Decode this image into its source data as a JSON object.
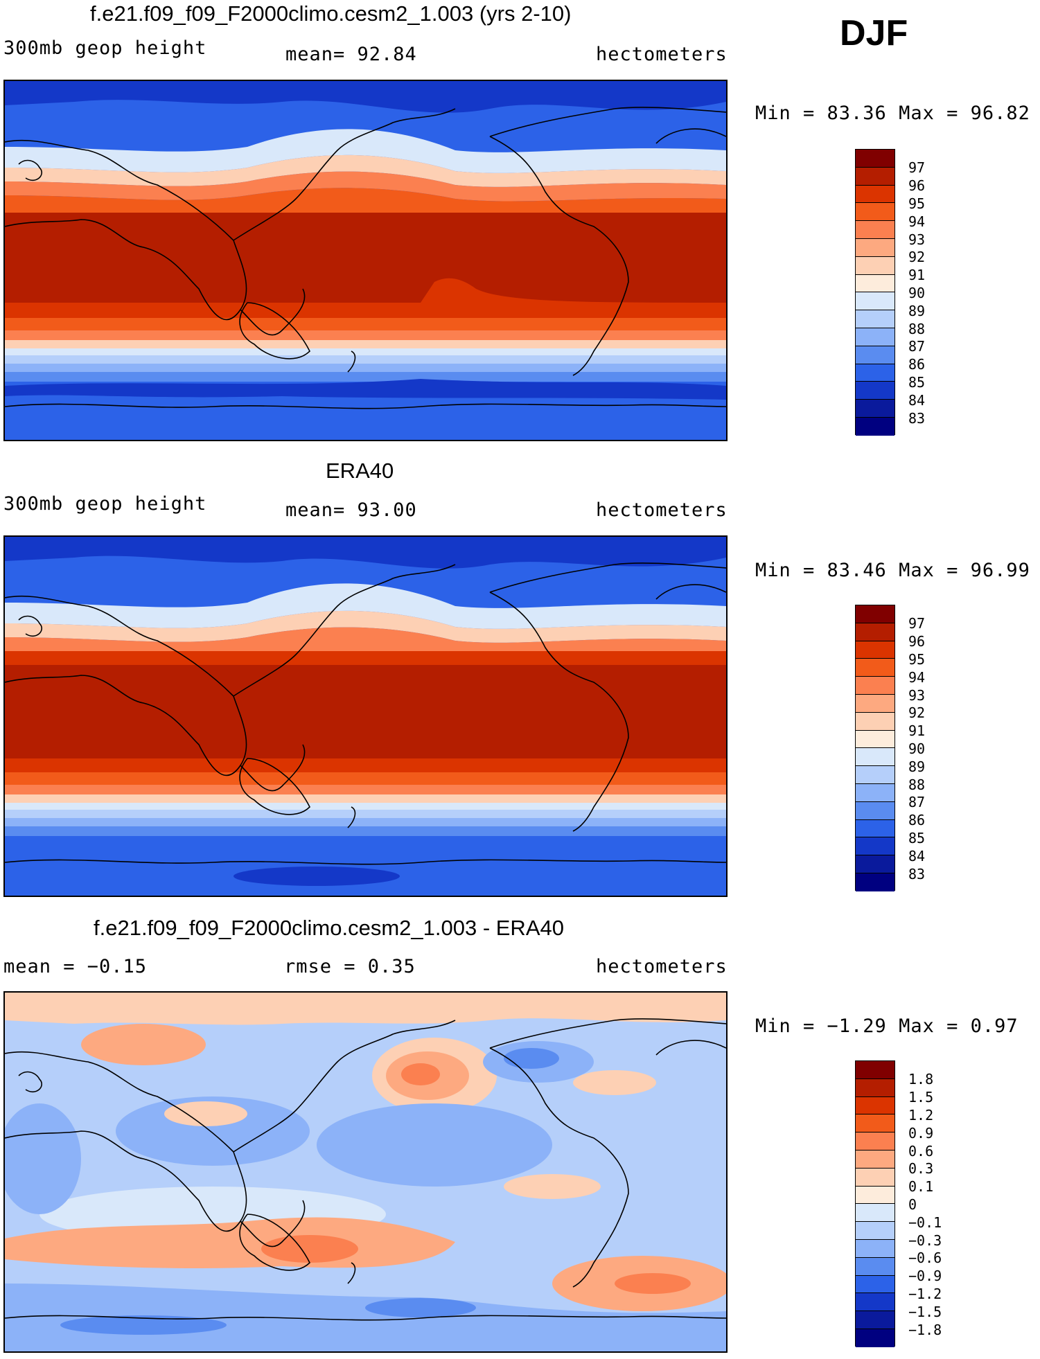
{
  "season": "DJF",
  "panels": [
    {
      "title": "f.e21.f09_f09_F2000climo.cesm2_1.003 (yrs 2-10)",
      "left_text": "300mb geop height",
      "center_text": "mean=  92.84",
      "units": "hectometers",
      "minmax": "Min =  83.36 Max =  96.82",
      "colorbar_levels": [
        "97",
        "96",
        "95",
        "94",
        "93",
        "92",
        "91",
        "90",
        "89",
        "88",
        "87",
        "86",
        "85",
        "84",
        "83"
      ]
    },
    {
      "title": "ERA40",
      "left_text": "300mb geop height",
      "center_text": "mean=  93.00",
      "units": "hectometers",
      "minmax": "Min =  83.46 Max =  96.99",
      "colorbar_levels": [
        "97",
        "96",
        "95",
        "94",
        "93",
        "92",
        "91",
        "90",
        "89",
        "88",
        "87",
        "86",
        "85",
        "84",
        "83"
      ]
    },
    {
      "title": "f.e21.f09_f09_F2000climo.cesm2_1.003 - ERA40",
      "left_text": "mean =  −0.15",
      "center_text": "rmse =   0.35",
      "units": "hectometers",
      "minmax": "Min =  −1.29 Max =   0.97",
      "colorbar_levels": [
        "1.8",
        "1.5",
        "1.2",
        "0.9",
        "0.6",
        "0.3",
        "0.1",
        "0",
        "−0.1",
        "−0.3",
        "−0.6",
        "−0.9",
        "−1.2",
        "−1.5",
        "−1.8"
      ]
    }
  ],
  "colors": {
    "colorbar": [
      "#800000",
      "#b41e00",
      "#db3400",
      "#f25b1a",
      "#fb8050",
      "#fda980",
      "#fdd0b4",
      "#fdecdc",
      "#d9e8fa",
      "#b5cffa",
      "#8cb2f8",
      "#5a8cf0",
      "#2c62e8",
      "#1438c8",
      "#0a1a9c",
      "#000080"
    ],
    "land_outline": "#000000"
  }
}
